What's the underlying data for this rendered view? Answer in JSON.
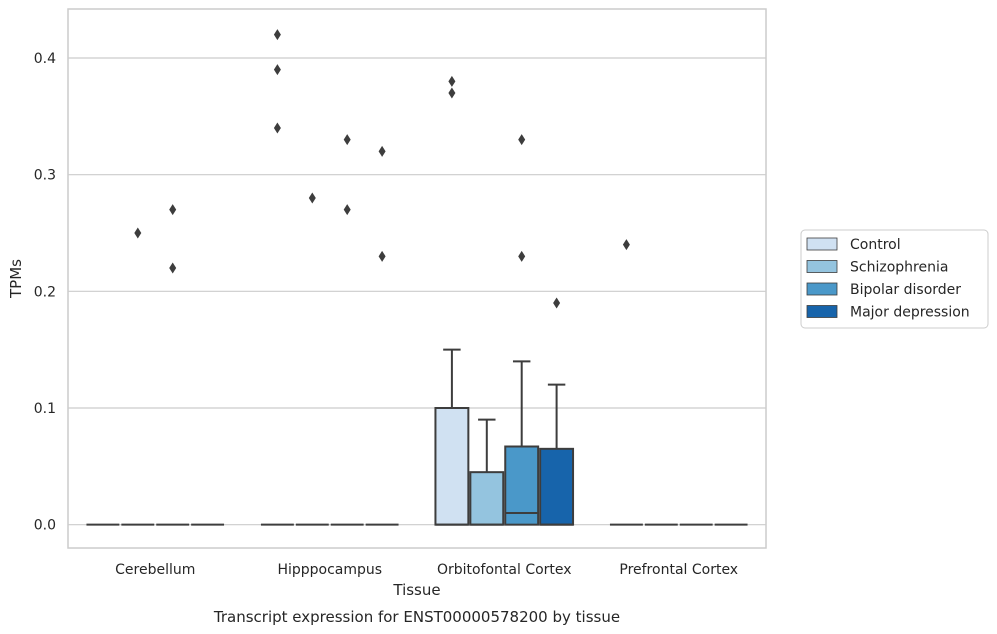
{
  "chart_data": {
    "type": "boxplot",
    "caption": "Transcript expression for ENST00000578200 by tissue",
    "xlabel": "Tissue",
    "ylabel": "TPMs",
    "ylim": [
      -0.02,
      0.442
    ],
    "yticks": [
      0.0,
      0.1,
      0.2,
      0.3,
      0.4
    ],
    "ytick_labels": [
      "0.0",
      "0.1",
      "0.2",
      "0.3",
      "0.4"
    ],
    "grid": "horizontal",
    "legend_position": "right",
    "categories": [
      "Cerebellum",
      "Hipppocampus",
      "Orbitofontal Cortex",
      "Prefrontal Cortex"
    ],
    "series": [
      {
        "name": "Control",
        "color": "#d0e1f2",
        "boxes": [
          {
            "q1": 0,
            "median": 0,
            "q3": 0,
            "whislo": 0,
            "whishi": 0,
            "fliers": []
          },
          {
            "q1": 0,
            "median": 0,
            "q3": 0,
            "whislo": 0,
            "whishi": 0,
            "fliers": [
              0.42,
              0.39,
              0.34
            ]
          },
          {
            "q1": 0,
            "median": 0,
            "q3": 0.1,
            "whislo": 0,
            "whishi": 0.15,
            "fliers": [
              0.38,
              0.37
            ]
          },
          {
            "q1": 0,
            "median": 0,
            "q3": 0,
            "whislo": 0,
            "whishi": 0,
            "fliers": [
              0.24
            ]
          }
        ]
      },
      {
        "name": "Schizophrenia",
        "color": "#94c4df",
        "boxes": [
          {
            "q1": 0,
            "median": 0,
            "q3": 0,
            "whislo": 0,
            "whishi": 0,
            "fliers": [
              0.25
            ]
          },
          {
            "q1": 0,
            "median": 0,
            "q3": 0,
            "whislo": 0,
            "whishi": 0,
            "fliers": [
              0.28
            ]
          },
          {
            "q1": 0,
            "median": 0,
            "q3": 0.045,
            "whislo": 0,
            "whishi": 0.09,
            "fliers": []
          },
          {
            "q1": 0,
            "median": 0,
            "q3": 0,
            "whislo": 0,
            "whishi": 0,
            "fliers": []
          }
        ]
      },
      {
        "name": "Bipolar disorder",
        "color": "#4a98c9",
        "boxes": [
          {
            "q1": 0,
            "median": 0,
            "q3": 0,
            "whislo": 0,
            "whishi": 0,
            "fliers": [
              0.27,
              0.22
            ]
          },
          {
            "q1": 0,
            "median": 0,
            "q3": 0,
            "whislo": 0,
            "whishi": 0,
            "fliers": [
              0.33,
              0.27
            ]
          },
          {
            "q1": 0,
            "median": 0.01,
            "q3": 0.067,
            "whislo": 0,
            "whishi": 0.14,
            "fliers": [
              0.33,
              0.23
            ]
          },
          {
            "q1": 0,
            "median": 0,
            "q3": 0,
            "whislo": 0,
            "whishi": 0,
            "fliers": []
          }
        ]
      },
      {
        "name": "Major depression",
        "color": "#1764ab",
        "boxes": [
          {
            "q1": 0,
            "median": 0,
            "q3": 0,
            "whislo": 0,
            "whishi": 0,
            "fliers": []
          },
          {
            "q1": 0,
            "median": 0,
            "q3": 0,
            "whislo": 0,
            "whishi": 0,
            "fliers": [
              0.32,
              0.23
            ]
          },
          {
            "q1": 0,
            "median": 0,
            "q3": 0.065,
            "whislo": 0,
            "whishi": 0.12,
            "fliers": [
              0.19
            ]
          },
          {
            "q1": 0,
            "median": 0,
            "q3": 0,
            "whislo": 0,
            "whishi": 0,
            "fliers": []
          }
        ]
      }
    ],
    "colors": {
      "line": "#3d3d3d",
      "grid": "#cccccc",
      "frame": "#cccccc"
    }
  }
}
